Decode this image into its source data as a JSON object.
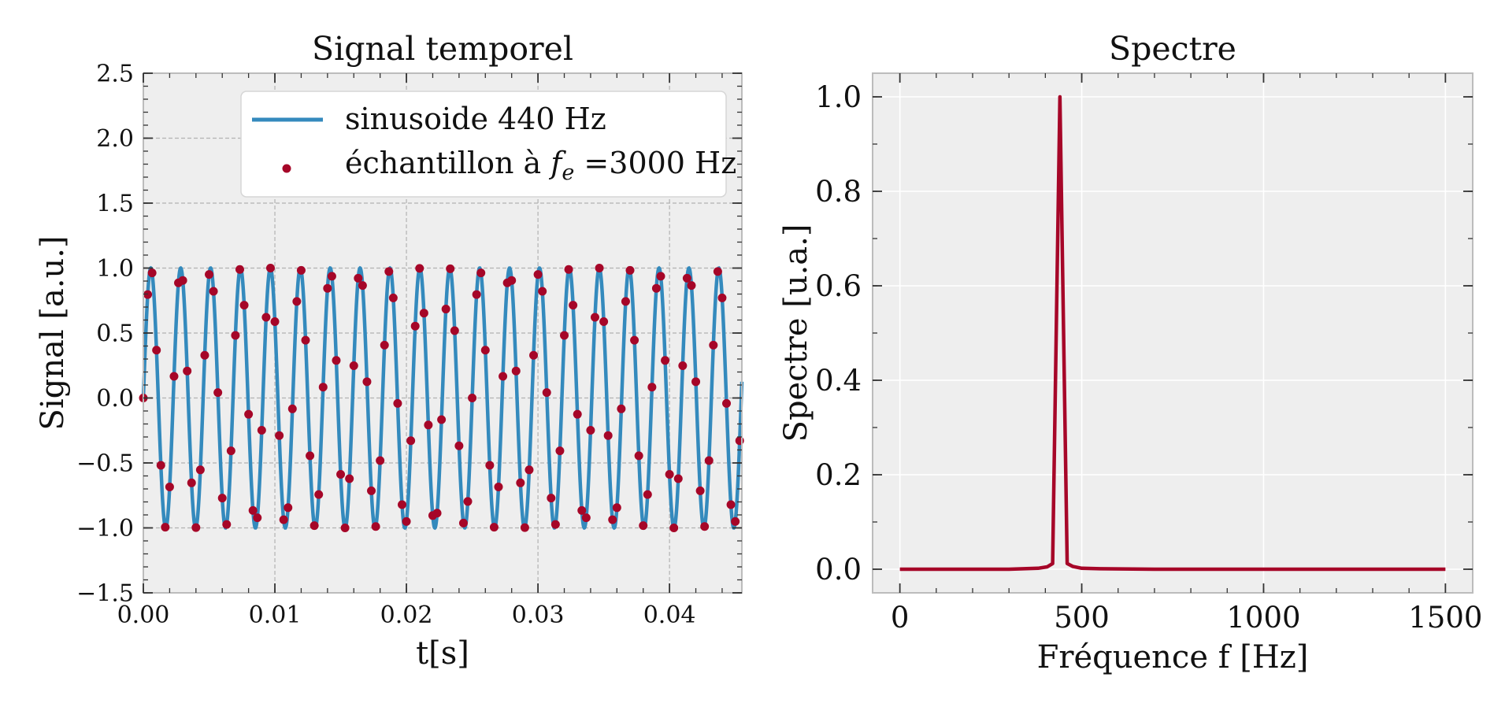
{
  "chart_data": [
    {
      "type": "line",
      "title": "Signal temporel",
      "xlabel": "t[s]",
      "ylabel": "Signal [a.u.]",
      "xlim": [
        0,
        0.0455
      ],
      "ylim": [
        -1.5,
        2.5
      ],
      "xticks": [
        0,
        0.01,
        0.02,
        0.03,
        0.04
      ],
      "xtick_labels": [
        "0.00",
        "0.01",
        "0.02",
        "0.03",
        "0.04"
      ],
      "yticks": [
        -1.5,
        -1.0,
        -0.5,
        0.0,
        0.5,
        1.0,
        1.5,
        2.0,
        2.5
      ],
      "ytick_labels": [
        "−1.5",
        "−1.0",
        "−0.5",
        "0.0",
        "0.5",
        "1.0",
        "1.5",
        "2.0",
        "2.5"
      ],
      "grid": true,
      "legend": "top-right",
      "series": [
        {
          "name": "sinusoide 440 Hz",
          "kind": "line",
          "color": "#348ABD",
          "function": "sine",
          "frequency_hz": 440,
          "amplitude": 1.0,
          "t_start": 0,
          "t_end": 0.0455
        },
        {
          "name": "échantillon à ",
          "name_math": "f",
          "name_math_sub": "e",
          "name_suffix": " =3000 Hz",
          "kind": "scatter",
          "color": "#A60628",
          "function": "sine",
          "frequency_hz": 440,
          "sampling_rate_hz": 3000,
          "amplitude": 1.0,
          "t_start": 0,
          "t_end": 0.0455
        }
      ]
    },
    {
      "type": "line",
      "title": "Spectre",
      "xlabel": "Fréquence f [Hz]",
      "ylabel": "Spectre [u.a.]",
      "xlim": [
        -75,
        1575
      ],
      "ylim": [
        -0.05,
        1.05
      ],
      "xticks": [
        0,
        500,
        1000,
        1500
      ],
      "xtick_labels": [
        "0",
        "500",
        "1000",
        "1500"
      ],
      "yticks": [
        0.0,
        0.2,
        0.4,
        0.6,
        0.8,
        1.0
      ],
      "ytick_labels": [
        "0.0",
        "0.2",
        "0.4",
        "0.6",
        "0.8",
        "1.0"
      ],
      "grid": true,
      "series": [
        {
          "kind": "line",
          "color": "#A60628",
          "x": [
            0,
            100,
            200,
            300,
            380,
            405,
            420,
            440,
            460,
            475,
            500,
            550,
            700,
            1000,
            1300,
            1500
          ],
          "y": [
            0,
            0,
            0,
            0,
            0.002,
            0.005,
            0.012,
            1.0,
            0.012,
            0.006,
            0.002,
            0.001,
            0,
            0,
            0,
            0
          ]
        }
      ]
    }
  ]
}
